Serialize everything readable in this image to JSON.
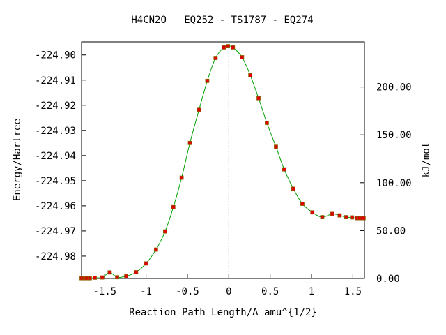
{
  "chart_data": {
    "type": "line",
    "title": "H4CN2O   EQ252 - TS1787 - EQ274",
    "xlabel": "Reaction Path Length/A amu^{1/2}",
    "ylabel": "Energy/Hartree",
    "y2label": "kJ/mol",
    "xlim": [
      -1.78,
      1.64
    ],
    "ylim": [
      -224.9889,
      -224.8948
    ],
    "y2lim": [
      0.0,
      247.1
    ],
    "x_ticks": [
      -1.5,
      -1,
      -0.5,
      0,
      0.5,
      1,
      1.5
    ],
    "x_tick_labels": [
      "-1.5",
      "-1",
      "-0.5",
      "0",
      "0.5",
      "1",
      "1.5"
    ],
    "y_ticks": [
      -224.9,
      -224.91,
      -224.92,
      -224.93,
      -224.94,
      -224.95,
      -224.96,
      -224.97,
      -224.98
    ],
    "y_tick_labels": [
      "-224.90",
      "-224.91",
      "-224.92",
      "-224.93",
      "-224.94",
      "-224.95",
      "-224.96",
      "-224.97",
      "-224.98"
    ],
    "y2_ticks": [
      0,
      50,
      100,
      150,
      200
    ],
    "y2_tick_labels": [
      "0.00",
      "50.00",
      "100.00",
      "150.00",
      "200.00"
    ],
    "grid": false,
    "legend": "none",
    "ts_marker_x": 0.0,
    "line_color": "#00a000",
    "marker_color": "#e00000",
    "marker_edge_color": "#8b6000",
    "series": [
      {
        "x": [
          -1.78,
          -1.76,
          -1.74,
          -1.72,
          -1.7,
          -1.68,
          -1.62,
          -1.53,
          -1.44,
          -1.35,
          -1.24,
          -1.12,
          -1.0,
          -0.88,
          -0.77,
          -0.67,
          -0.57,
          -0.47,
          -0.36,
          -0.26,
          -0.16,
          -0.06,
          -0.01,
          0.05,
          0.16,
          0.26,
          0.36,
          0.46,
          0.57,
          0.67,
          0.78,
          0.89,
          1.01,
          1.13,
          1.25,
          1.34,
          1.42,
          1.49,
          1.55,
          1.58,
          1.61,
          1.63
        ],
        "y": [
          -224.9888,
          -224.9888,
          -224.9888,
          -224.9888,
          -224.9888,
          -224.9888,
          -224.9886,
          -224.9885,
          -224.9865,
          -224.9884,
          -224.988,
          -224.9864,
          -224.9829,
          -224.9774,
          -224.9702,
          -224.9605,
          -224.9488,
          -224.935,
          -224.9218,
          -224.9103,
          -224.9012,
          -224.897,
          -224.8965,
          -224.897,
          -224.9009,
          -224.9081,
          -224.9172,
          -224.927,
          -224.9365,
          -224.9455,
          -224.9532,
          -224.9592,
          -224.9626,
          -224.9645,
          -224.9632,
          -224.9638,
          -224.9645,
          -224.9646,
          -224.9649,
          -224.9649,
          -224.9649,
          -224.9649
        ]
      }
    ]
  }
}
